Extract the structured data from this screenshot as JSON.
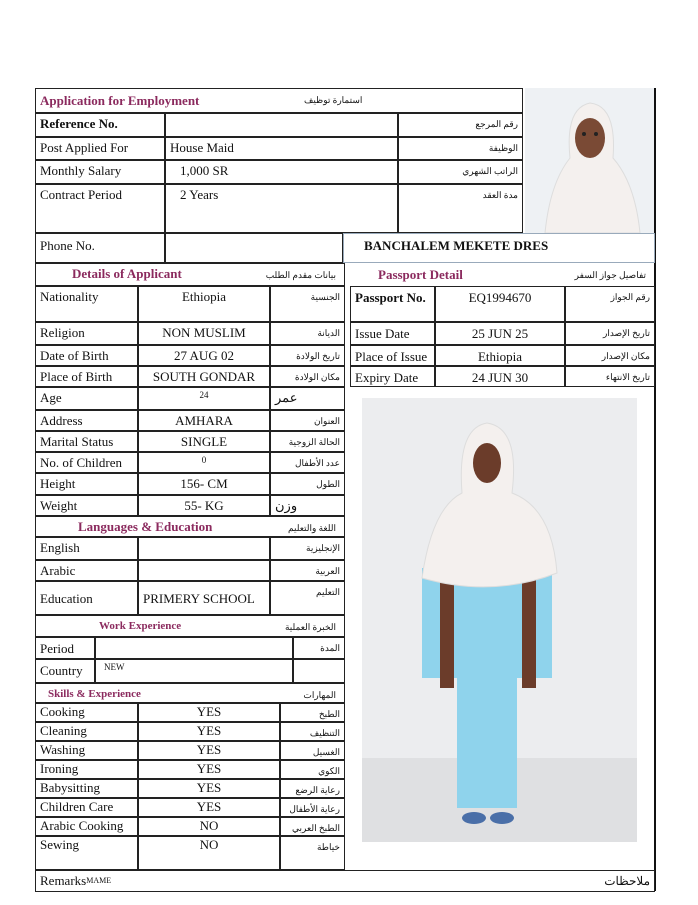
{
  "header": {
    "title": "Application for Employment",
    "title_ar": "استمارة توظيف"
  },
  "top": [
    {
      "label": "Reference No.",
      "value": "",
      "ar": "رقم المرجع"
    },
    {
      "label": "Post Applied For",
      "value": "House Maid",
      "ar": "الوظيفة"
    },
    {
      "label": "Monthly Salary",
      "value": "1,000 SR",
      "ar": "الراتب الشهري"
    },
    {
      "label": "Contract Period",
      "value": "2 Years",
      "ar": "مدة العقد"
    }
  ],
  "phone": {
    "label": "Phone No.",
    "value": ""
  },
  "applicant_name": "BANCHALEM MEKETE DRES",
  "details": {
    "title": "Details of Applicant",
    "title_ar": "بيانات مقدم الطلب",
    "rows": [
      {
        "label": "Nationality",
        "value": "Ethiopia",
        "ar": "الجنسية"
      },
      {
        "label": "Religion",
        "value": "NON MUSLIM",
        "ar": "الديانة"
      },
      {
        "label": "Date of Birth",
        "value": "27 AUG 02",
        "ar": "تاريخ الولادة"
      },
      {
        "label": "Place of Birth",
        "value": "SOUTH GONDAR",
        "ar": "مكان الولادة"
      },
      {
        "label": "Age",
        "value": "24",
        "ar": "عمر"
      },
      {
        "label": "Address",
        "value": "AMHARA",
        "ar": "العنوان"
      },
      {
        "label": "Marital Status",
        "value": "SINGLE",
        "ar": "الحالة الزوجية"
      },
      {
        "label": "No. of Children",
        "value": "0",
        "ar": "عدد الأطفال"
      },
      {
        "label": "Height",
        "value": "156- CM",
        "ar": "الطول"
      },
      {
        "label": "Weight",
        "value": "55- KG",
        "ar": "وزن"
      }
    ]
  },
  "passport": {
    "title": "Passport Detail",
    "title_ar": "تفاصيل جواز السفر",
    "rows": [
      {
        "label": "Passport No.",
        "value": "EQ1994670",
        "ar": "رقم الجواز"
      },
      {
        "label": "Issue Date",
        "value": "25 JUN 25",
        "ar": "تاريخ الإصدار"
      },
      {
        "label": "Place of Issue",
        "value": "Ethiopia",
        "ar": "مكان الإصدار"
      },
      {
        "label": "Expiry Date",
        "value": "24 JUN 30",
        "ar": "تاريخ الانتهاء"
      }
    ]
  },
  "languages": {
    "title": "Languages & Education",
    "title_ar": "اللغة والتعليم",
    "rows": [
      {
        "label": "English",
        "value": "",
        "ar": "الإنجليزية"
      },
      {
        "label": "Arabic",
        "value": "",
        "ar": "العربية"
      },
      {
        "label": "Education",
        "value": "PRIMERY SCHOOL",
        "ar": "التعليم"
      }
    ]
  },
  "work": {
    "title": "Work Experience",
    "title_ar": "الخبرة العملية",
    "rows": [
      {
        "label": "Period",
        "value": "",
        "ar": "المدة"
      },
      {
        "label": "Country",
        "value": "NEW",
        "ar": ""
      }
    ]
  },
  "skills": {
    "title": "Skills & Experience",
    "title_ar": "المهارات",
    "rows": [
      {
        "label": "Cooking",
        "value": "YES",
        "ar": "الطبخ"
      },
      {
        "label": "Cleaning",
        "value": "YES",
        "ar": "التنظيف"
      },
      {
        "label": "Washing",
        "value": "YES",
        "ar": "الغسيل"
      },
      {
        "label": "Ironing",
        "value": "YES",
        "ar": "الكوي"
      },
      {
        "label": "Babysitting",
        "value": "YES",
        "ar": "رعاية الرضع"
      },
      {
        "label": "Children Care",
        "value": "YES",
        "ar": "رعاية الأطفال"
      },
      {
        "label": "Arabic Cooking",
        "value": "NO",
        "ar": "الطبخ العربي"
      },
      {
        "label": "Sewing",
        "value": "NO",
        "ar": "خياطة"
      }
    ]
  },
  "remarks": {
    "label": "Remarks",
    "value": "MAME",
    "ar": "ملاحظات"
  },
  "colors": {
    "heading": "#8b2a5e",
    "uniform": "#8fd3ec",
    "hijab": "#f4f0ee"
  }
}
